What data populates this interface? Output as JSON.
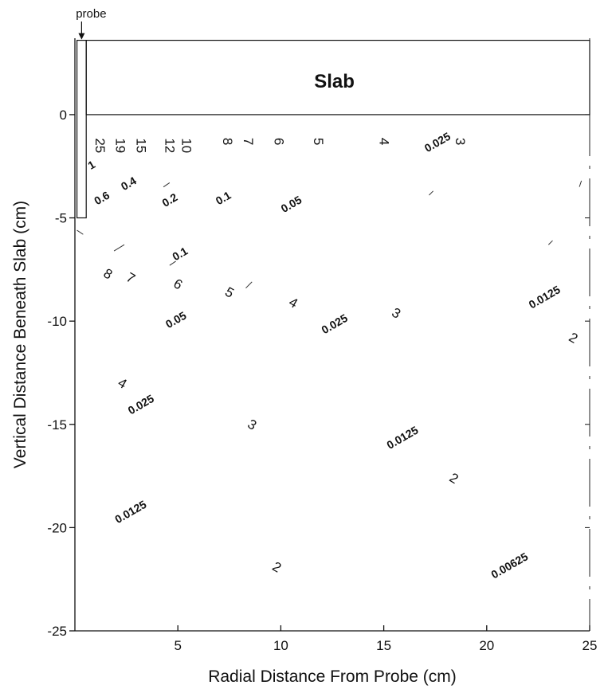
{
  "chart_data": {
    "type": "contour",
    "xlabel": "Radial Distance From Probe (cm)",
    "ylabel": "Vertical Distance Beneath Slab (cm)",
    "xlim": [
      0,
      25
    ],
    "ylim": [
      -25,
      3.7
    ],
    "x_ticks": [
      5,
      10,
      15,
      20,
      25
    ],
    "y_ticks": [
      0,
      -5,
      -10,
      -15,
      -20,
      -25
    ],
    "slab": {
      "label": "Slab",
      "y_top": 3.6,
      "y_bottom": 0
    },
    "probe": {
      "label": "probe",
      "x_from": 0.1,
      "x_to": 0.55,
      "y_bottom": -5
    },
    "contour_labels": [
      {
        "text": "25",
        "x": 1.0,
        "y": -1.5,
        "small": false
      },
      {
        "text": "19",
        "x": 2.0,
        "y": -1.5,
        "small": false
      },
      {
        "text": "15",
        "x": 3.0,
        "y": -1.5,
        "small": false
      },
      {
        "text": "12",
        "x": 4.4,
        "y": -1.5,
        "small": false
      },
      {
        "text": "10",
        "x": 5.2,
        "y": -1.5,
        "small": false
      },
      {
        "text": "8",
        "x": 7.2,
        "y": -1.3,
        "small": false
      },
      {
        "text": "7",
        "x": 8.2,
        "y": -1.3,
        "small": false
      },
      {
        "text": "6",
        "x": 9.7,
        "y": -1.3,
        "small": false
      },
      {
        "text": "5",
        "x": 11.6,
        "y": -1.3,
        "small": false
      },
      {
        "text": "4",
        "x": 14.8,
        "y": -1.3,
        "small": false
      },
      {
        "text": "3",
        "x": 18.5,
        "y": -1.3,
        "small": false
      },
      {
        "text": "0.025",
        "x": 17.7,
        "y": -1.5,
        "small": true
      },
      {
        "text": "1",
        "x": 0.9,
        "y": -2.6,
        "small": true
      },
      {
        "text": "0.6",
        "x": 1.4,
        "y": -4.2,
        "small": true
      },
      {
        "text": "0.4",
        "x": 2.7,
        "y": -3.5,
        "small": true
      },
      {
        "text": "0.2",
        "x": 4.7,
        "y": -4.3,
        "small": true
      },
      {
        "text": "0.1",
        "x": 7.3,
        "y": -4.2,
        "small": true
      },
      {
        "text": "0.05",
        "x": 10.6,
        "y": -4.5,
        "small": true
      },
      {
        "text": "0.1",
        "x": 5.2,
        "y": -6.9,
        "small": true
      },
      {
        "text": "8",
        "x": 1.5,
        "y": -7.9,
        "small": false
      },
      {
        "text": "7",
        "x": 2.6,
        "y": -8.1,
        "small": false
      },
      {
        "text": "6",
        "x": 4.9,
        "y": -8.4,
        "small": false
      },
      {
        "text": "5",
        "x": 7.4,
        "y": -8.8,
        "small": false
      },
      {
        "text": "4",
        "x": 10.5,
        "y": -9.3,
        "small": false
      },
      {
        "text": "3",
        "x": 15.5,
        "y": -9.8,
        "small": false
      },
      {
        "text": "2",
        "x": 24.1,
        "y": -11.0,
        "small": false
      },
      {
        "text": "0.05",
        "x": 5.0,
        "y": -10.1,
        "small": true
      },
      {
        "text": "0.025",
        "x": 12.7,
        "y": -10.3,
        "small": true
      },
      {
        "text": "0.0125",
        "x": 22.9,
        "y": -9.0,
        "small": true
      },
      {
        "text": "4",
        "x": 2.2,
        "y": -13.2,
        "small": false
      },
      {
        "text": "0.025",
        "x": 3.3,
        "y": -14.2,
        "small": true
      },
      {
        "text": "3",
        "x": 8.5,
        "y": -15.2,
        "small": false
      },
      {
        "text": "0.0125",
        "x": 16.0,
        "y": -15.8,
        "small": true
      },
      {
        "text": "2",
        "x": 18.3,
        "y": -17.8,
        "small": false
      },
      {
        "text": "0.0125",
        "x": 2.8,
        "y": -19.4,
        "small": true
      },
      {
        "text": "2",
        "x": 9.7,
        "y": -22.1,
        "small": false
      },
      {
        "text": "0.00625",
        "x": 21.2,
        "y": -22.0,
        "small": true
      }
    ],
    "fragments": [
      [
        [
          1.9,
          -6.6
        ],
        [
          2.4,
          -6.3
        ]
      ],
      [
        [
          4.6,
          -7.3
        ],
        [
          4.9,
          -7.1
        ]
      ],
      [
        [
          4.3,
          -3.5
        ],
        [
          4.6,
          -3.3
        ]
      ],
      [
        [
          8.3,
          -8.4
        ],
        [
          8.6,
          -8.1
        ]
      ],
      [
        [
          17.2,
          -3.9
        ],
        [
          17.4,
          -3.7
        ]
      ],
      [
        [
          23.0,
          -6.3
        ],
        [
          23.2,
          -6.1
        ]
      ],
      [
        [
          24.5,
          -3.5
        ],
        [
          24.6,
          -3.2
        ]
      ],
      [
        [
          0.1,
          -5.6
        ],
        [
          0.4,
          -5.8
        ]
      ]
    ]
  }
}
